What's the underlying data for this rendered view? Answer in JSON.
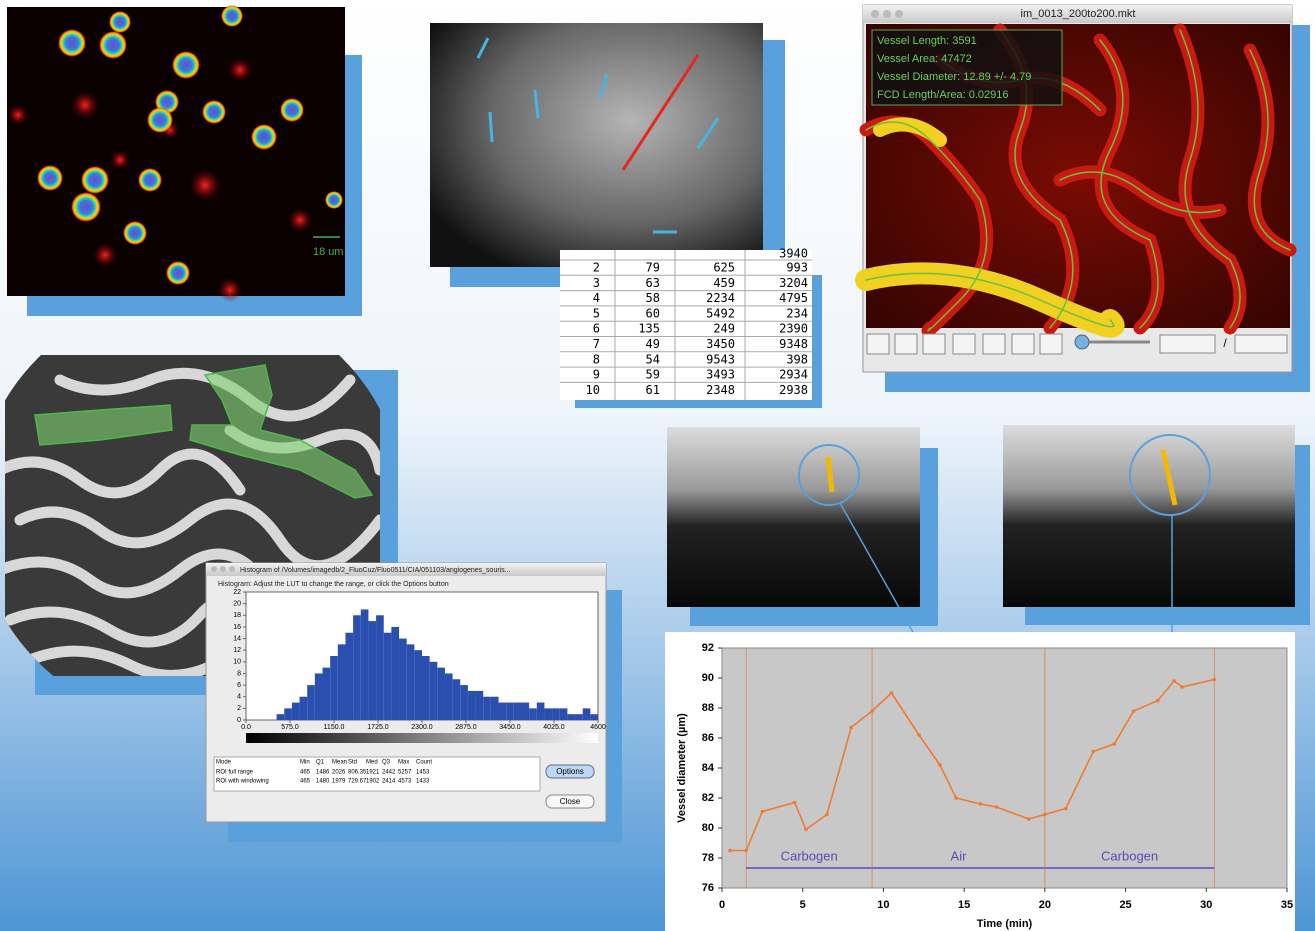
{
  "fluorescence_image": {
    "scale_bar": "18 um"
  },
  "table": {
    "top_cut_value": "3940",
    "rows": [
      [
        "2",
        "79",
        "625",
        "993"
      ],
      [
        "3",
        "63",
        "459",
        "3204"
      ],
      [
        "4",
        "58",
        "2234",
        "4795"
      ],
      [
        "5",
        "60",
        "5492",
        "234"
      ],
      [
        "6",
        "135",
        "249",
        "2390"
      ],
      [
        "7",
        "49",
        "3450",
        "9348"
      ],
      [
        "8",
        "54",
        "9543",
        "398"
      ],
      [
        "9",
        "59",
        "3493",
        "2934"
      ],
      [
        "10",
        "61",
        "2348",
        "2938"
      ]
    ]
  },
  "vessel_window": {
    "title": "im_0013_200to200.mkt",
    "stats": [
      "Vessel Length: 3591",
      "Vessel Area: 47472",
      "Vessel Diameter: 12.89 +/- 4.79",
      "FCD Length/Area: 0.02916"
    ],
    "frame_separator": "/"
  },
  "histogram_window": {
    "title": "Histogram of /Volumes/imagedb/2_FluoCuz/Fluo0511/CIA/051103/angiogenes_souris...",
    "instructions": "Histogram: Adjust the LUT to change the range, or click the Options button",
    "stats_header": [
      "Mode",
      "Min",
      "Q1",
      "Mean",
      "Std",
      "Med",
      "Q3",
      "Max",
      "Count"
    ],
    "stats_rows": [
      [
        "ROI full range",
        "465",
        "1486",
        "2026",
        "806.35",
        "1921",
        "2442",
        "5257",
        "1453"
      ],
      [
        "ROI with windowing",
        "465",
        "1480",
        "1979",
        "729.67",
        "1902",
        "2414",
        "4573",
        "1433"
      ]
    ],
    "buttons": [
      "Options",
      "Close"
    ]
  },
  "chart_data": [
    {
      "type": "histogram",
      "color": "#2b4fae",
      "bins": [
        0,
        100,
        200,
        300,
        400,
        500,
        600,
        700,
        800,
        900,
        1000,
        1100,
        1200,
        1300,
        1400,
        1500,
        1600,
        1700,
        1800,
        1900,
        2000,
        2100,
        2200,
        2300,
        2400,
        2500,
        2600,
        2700,
        2800,
        2900,
        3000,
        3100,
        3200,
        3300,
        3400,
        3500,
        3600,
        3700,
        3800,
        3900,
        4000,
        4100,
        4200,
        4300,
        4400,
        4500,
        4600
      ],
      "values": [
        0,
        0,
        0,
        0,
        1,
        2,
        3,
        4,
        6,
        8,
        9,
        11,
        13,
        15,
        18,
        19,
        17,
        18,
        15,
        16,
        14,
        13,
        12,
        11,
        10,
        9,
        8,
        7,
        6,
        5,
        5,
        4,
        4,
        3,
        3,
        3,
        3,
        2,
        3,
        2,
        2,
        2,
        1,
        1,
        2,
        1
      ],
      "xlim": [
        0,
        4600
      ],
      "ylim": [
        0,
        22
      ],
      "yticks": [
        0,
        2,
        4,
        6,
        8,
        10,
        12,
        14,
        16,
        18,
        20,
        22
      ],
      "xticks": [
        {
          "value": 0,
          "label": "0.0"
        },
        {
          "value": 575,
          "label": "575.0"
        },
        {
          "value": 1150,
          "label": "1150.0"
        },
        {
          "value": 1725,
          "label": "1725.0"
        },
        {
          "value": 2300,
          "label": "2300.0"
        },
        {
          "value": 2875,
          "label": "2875.0"
        },
        {
          "value": 3450,
          "label": "3450.0"
        },
        {
          "value": 4025,
          "label": "4025.0"
        },
        4600
      ]
    },
    {
      "type": "line",
      "x_label": "Time (min)",
      "y_label": "Vessel diameter (µm)",
      "x": [
        0.5,
        1.5,
        2.5,
        4.5,
        5.2,
        6.5,
        8,
        9.3,
        10.5,
        12.2,
        13.5,
        14.5,
        16,
        17,
        19,
        20,
        21.3,
        23,
        24.3,
        25.5,
        27,
        28,
        28.5,
        30.5
      ],
      "series": [
        {
          "color": "#f07a30",
          "values": [
            78.5,
            78.5,
            81.1,
            81.7,
            79.9,
            80.9,
            86.7,
            87.8,
            89,
            86.2,
            84.2,
            82,
            81.6,
            81.4,
            80.6,
            80.9,
            81.3,
            85.1,
            85.6,
            87.8,
            88.5,
            89.8,
            89.4,
            89.9
          ]
        }
      ],
      "xlim": [
        0,
        35
      ],
      "ylim": [
        76,
        92
      ],
      "xticks": [
        0,
        5,
        10,
        15,
        20,
        25,
        30,
        35
      ],
      "yticks": [
        76,
        78,
        80,
        82,
        84,
        86,
        88,
        90,
        92
      ],
      "plot_background": "#c8c8c8",
      "phases": [
        {
          "label": "Carbogen",
          "start": 1.5,
          "end": 9.3
        },
        {
          "label": "Air",
          "start": 9.3,
          "end": 20
        },
        {
          "label": "Carbogen",
          "start": 20,
          "end": 30.5
        }
      ],
      "phase_color": "#5b4ab8"
    }
  ]
}
